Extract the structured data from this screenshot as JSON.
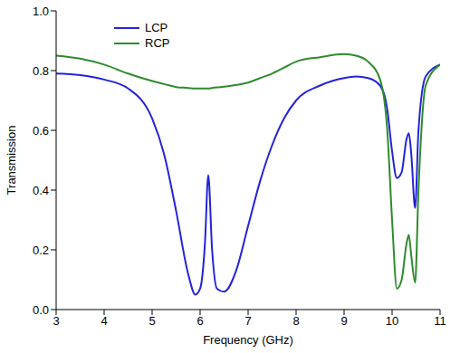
{
  "chart_data": {
    "type": "line",
    "x_label": "Frequency (GHz)",
    "y_label": "Transmission",
    "x": [
      3,
      3.5,
      4,
      4.5,
      5,
      5.25,
      5.5,
      5.75,
      5.9,
      6.0,
      6.1,
      6.17,
      6.25,
      6.35,
      6.5,
      6.75,
      7,
      7.25,
      7.5,
      7.75,
      8,
      8.5,
      9,
      9.25,
      9.5,
      9.75,
      9.9,
      10,
      10.1,
      10.2,
      10.3,
      10.35,
      10.4,
      10.48,
      10.55,
      10.7,
      11
    ],
    "series": [
      {
        "name": "LCP",
        "color": "#2424d8",
        "values": [
          0.79,
          0.785,
          0.77,
          0.74,
          0.64,
          0.52,
          0.33,
          0.12,
          0.05,
          0.07,
          0.22,
          0.45,
          0.2,
          0.07,
          0.06,
          0.13,
          0.28,
          0.43,
          0.55,
          0.64,
          0.7,
          0.75,
          0.775,
          0.78,
          0.775,
          0.75,
          0.67,
          0.53,
          0.44,
          0.46,
          0.57,
          0.59,
          0.52,
          0.34,
          0.6,
          0.78,
          0.82
        ]
      },
      {
        "name": "RCP",
        "color": "#2e8b2e",
        "values": [
          0.85,
          0.84,
          0.82,
          0.79,
          0.765,
          0.755,
          0.745,
          0.742,
          0.74,
          0.74,
          0.74,
          0.74,
          0.742,
          0.744,
          0.746,
          0.752,
          0.76,
          0.775,
          0.79,
          0.81,
          0.83,
          0.845,
          0.855,
          0.85,
          0.83,
          0.77,
          0.6,
          0.3,
          0.07,
          0.1,
          0.22,
          0.25,
          0.18,
          0.09,
          0.4,
          0.75,
          0.82
        ]
      }
    ],
    "xlim": [
      3,
      11
    ],
    "xticks": [
      3,
      4,
      5,
      6,
      7,
      8,
      9,
      10,
      11
    ],
    "ylim": [
      0,
      1
    ],
    "yticks": [
      {
        "value": 0,
        "label": "0.0"
      },
      0.2,
      0.4,
      0.6,
      0.8,
      {
        "value": 1,
        "label": "1.0"
      }
    ],
    "grid": false,
    "legend": "upper left"
  }
}
